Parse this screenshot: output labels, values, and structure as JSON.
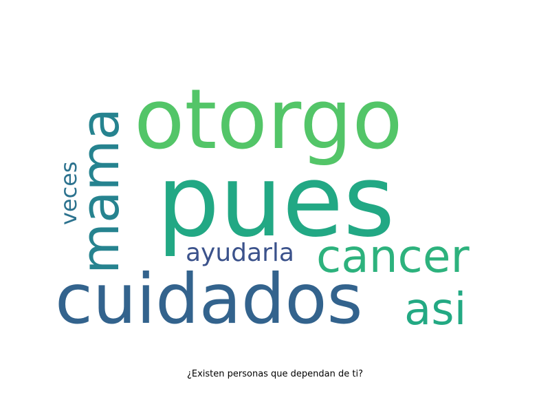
{
  "word_cloud": {
    "words": [
      {
        "id": "pues",
        "text": "pues",
        "color": "#22a884"
      },
      {
        "id": "otorgo",
        "text": "otorgo",
        "color": "#53c568"
      },
      {
        "id": "cuidados",
        "text": "cuidados",
        "color": "#33638d"
      },
      {
        "id": "mama",
        "text": "mama",
        "color": "#26838f"
      },
      {
        "id": "cancer",
        "text": "cancer",
        "color": "#2db27d"
      },
      {
        "id": "asi",
        "text": "asi",
        "color": "#23a983"
      },
      {
        "id": "ayudarla",
        "text": "ayudarla",
        "color": "#3b528b"
      },
      {
        "id": "veces",
        "text": "veces",
        "color": "#2c728e"
      }
    ]
  },
  "caption": "¿Existen personas que dependan de ti?"
}
